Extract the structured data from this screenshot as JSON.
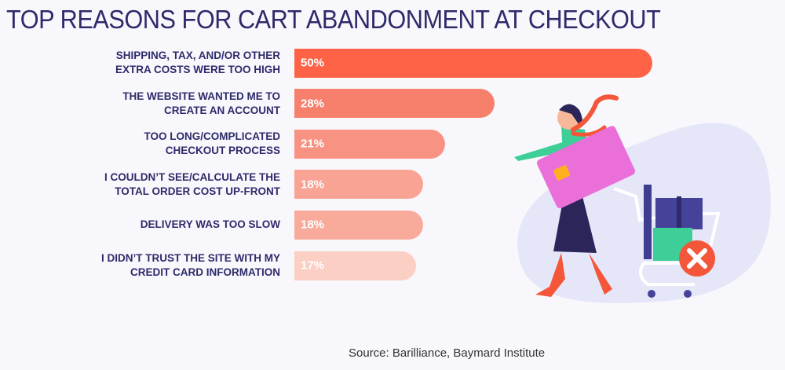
{
  "chart_data": {
    "type": "bar",
    "orientation": "horizontal",
    "title": "TOP REASONS FOR CART ABANDONMENT AT CHECKOUT",
    "categories": [
      "SHIPPING, TAX, AND/OR OTHER EXTRA COSTS WERE TOO HIGH",
      "THE WEBSITE WANTED ME TO CREATE AN ACCOUNT",
      "TOO LONG/COMPLICATED CHECKOUT PROCESS",
      "I COULDN'T SEE/CALCULATE THE TOTAL ORDER COST UP-FRONT",
      "DELIVERY WAS TOO SLOW",
      "I DIDN'T TRUST THE SITE WITH MY CREDIT CARD INFORMATION"
    ],
    "label_lines": [
      [
        "SHIPPING, TAX, AND/OR OTHER",
        "EXTRA COSTS WERE TOO HIGH"
      ],
      [
        "THE WEBSITE WANTED ME TO",
        "CREATE AN ACCOUNT"
      ],
      [
        "TOO LONG/COMPLICATED",
        "CHECKOUT PROCESS"
      ],
      [
        "I COULDN’T SEE/CALCULATE THE",
        "TOTAL ORDER COST UP-FRONT"
      ],
      [
        "DELIVERY WAS TOO SLOW"
      ],
      [
        "I DIDN’T TRUST THE SITE WITH MY",
        "CREDIT CARD INFORMATION"
      ]
    ],
    "values": [
      50,
      28,
      21,
      18,
      18,
      17
    ],
    "value_labels": [
      "50%",
      "28%",
      "21%",
      "18%",
      "18%",
      "17%"
    ],
    "unit": "%",
    "bar_colors": [
      "#ff6347",
      "#f7806d",
      "#f89383",
      "#f8a393",
      "#f9ab9b",
      "#fbcfc4"
    ],
    "grid": false
  },
  "source": "Source: Barilliance, Baymard Institute",
  "colors": {
    "title": "#2e2a6b",
    "background": "#f8f8fc"
  }
}
